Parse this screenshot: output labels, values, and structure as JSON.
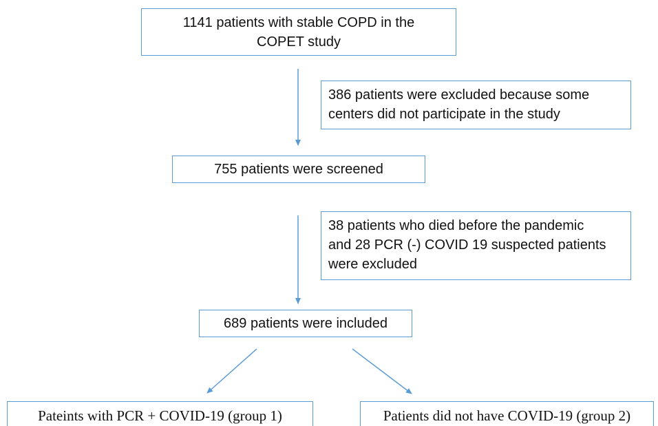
{
  "nodes": [
    {
      "lines": [
        "1141 patients with stable COPD in the",
        "COPET study"
      ]
    },
    {
      "lines": [
        "386 patients were excluded because some",
        "centers did not participate in the study"
      ]
    },
    {
      "lines": [
        "755 patients were screened"
      ]
    },
    {
      "lines": [
        "38 patients who died before the pandemic",
        "and 28 PCR (-) COVID 19 suspected patients",
        "were excluded"
      ]
    },
    {
      "lines": [
        "689 patients were included"
      ]
    },
    {
      "lines": [
        "Pateints with PCR + COVID-19 (group 1)"
      ]
    },
    {
      "lines": [
        "Patients did not have COVID-19 (group 2)"
      ]
    }
  ]
}
